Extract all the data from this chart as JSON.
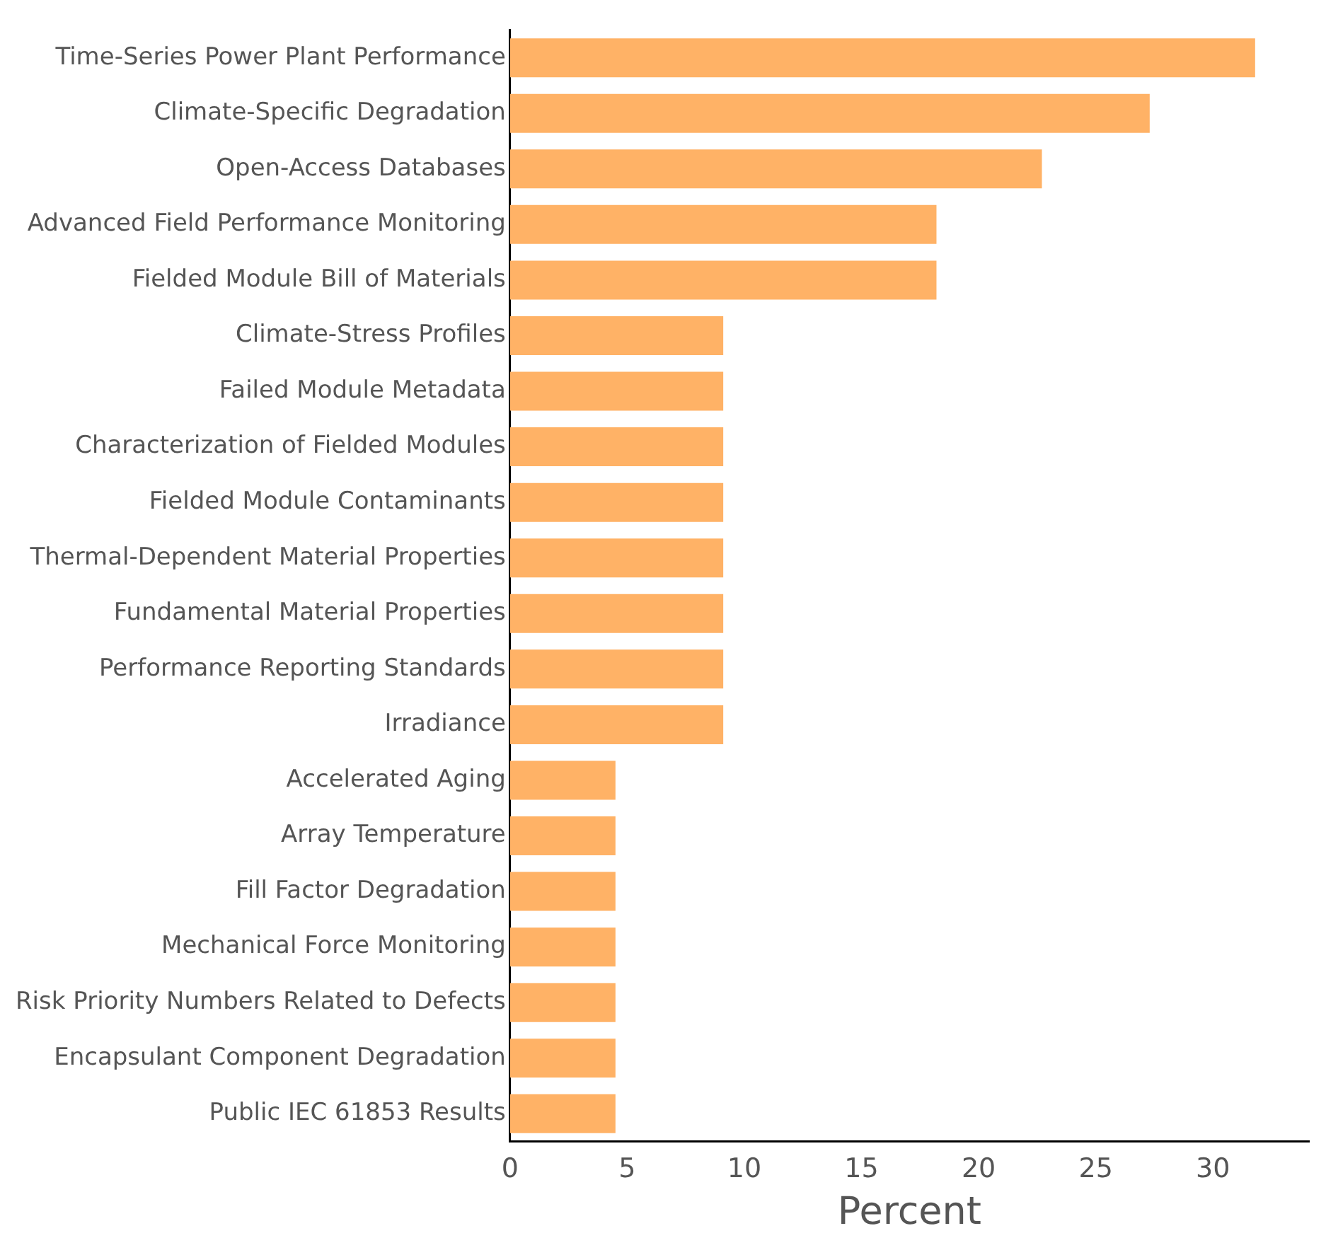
{
  "chart_data": {
    "type": "bar",
    "orientation": "horizontal",
    "xlabel": "Percent",
    "categories": [
      "Time-Series Power Plant Performance",
      "Climate-Specific Degradation",
      "Open-Access Databases",
      "Advanced Field Performance Monitoring",
      "Fielded Module Bill of Materials",
      "Climate-Stress Profiles",
      "Failed Module Metadata",
      "Characterization of Fielded Modules",
      "Fielded Module Contaminants",
      "Thermal-Dependent Material Properties",
      "Fundamental Material Properties",
      "Performance Reporting Standards",
      "Irradiance",
      "Accelerated Aging",
      "Array Temperature",
      "Fill Factor Degradation",
      "Mechanical Force Monitoring",
      "Risk Priority Numbers Related to Defects",
      "Encapsulant Component Degradation",
      "Public IEC 61853 Results"
    ],
    "values": [
      31.8,
      27.3,
      22.7,
      18.2,
      18.2,
      9.1,
      9.1,
      9.1,
      9.1,
      9.1,
      9.1,
      9.1,
      9.1,
      4.5,
      4.5,
      4.5,
      4.5,
      4.5,
      4.5,
      4.5
    ],
    "color": "#ffb266",
    "xlim": [
      0,
      34.1
    ],
    "xticks": [
      0,
      5,
      10,
      15,
      20,
      25,
      30
    ],
    "grid": false,
    "legend": false
  }
}
